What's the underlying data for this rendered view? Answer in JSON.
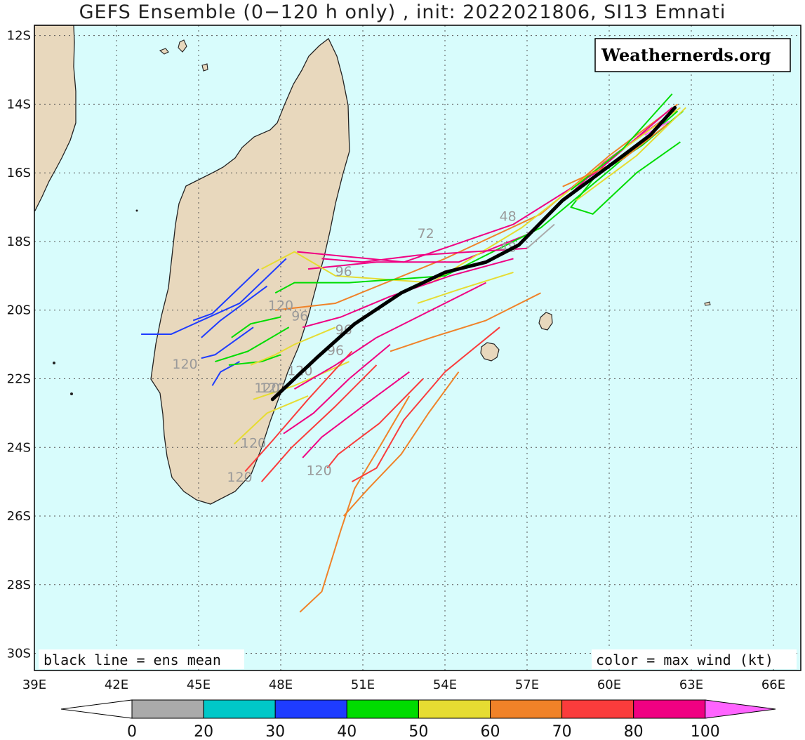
{
  "title": "GEFS Ensemble (0−120 h only) , init: 2022021806, SI13 Emnati",
  "watermark": "Weathernerds.org",
  "notes": {
    "left": "black line = ens mean",
    "right": "color = max wind (kt)"
  },
  "map": {
    "lon_range": [
      39,
      67
    ],
    "lat_range": [
      -30.5,
      -11.7
    ],
    "x_ticks": [
      "39E",
      "42E",
      "45E",
      "48E",
      "51E",
      "54E",
      "57E",
      "60E",
      "63E",
      "66E"
    ],
    "y_ticks": [
      "12S",
      "14S",
      "16S",
      "18S",
      "20S",
      "22S",
      "24S",
      "26S",
      "28S",
      "30S"
    ],
    "ocean_color": "#d8fcfc",
    "land_color": "#e8d8bd",
    "grid": "dotted"
  },
  "colorbar": {
    "labels": [
      "0",
      "20",
      "30",
      "40",
      "50",
      "60",
      "70",
      "80",
      "100"
    ],
    "colors": [
      "#aaaaaa",
      "#00c8c8",
      "#1e3cff",
      "#00dc00",
      "#e6dc32",
      "#f08228",
      "#fa3c3c",
      "#f00082",
      "#ff64ff"
    ]
  },
  "tau_labels": [
    "120",
    "120",
    "120",
    "120",
    "120",
    "120",
    "120",
    "96",
    "96",
    "96",
    "96",
    "72",
    "48",
    "48",
    "120"
  ],
  "mean_track": [
    [
      47.7,
      -22.6
    ],
    [
      49.3,
      -21.4
    ],
    [
      50.7,
      -20.4
    ],
    [
      52.4,
      -19.5
    ],
    [
      54.0,
      -18.9
    ],
    [
      55.5,
      -18.6
    ],
    [
      56.7,
      -18.1
    ],
    [
      58.3,
      -16.8
    ],
    [
      60.0,
      -15.8
    ],
    [
      61.5,
      -14.9
    ],
    [
      62.4,
      -14.1
    ]
  ]
}
